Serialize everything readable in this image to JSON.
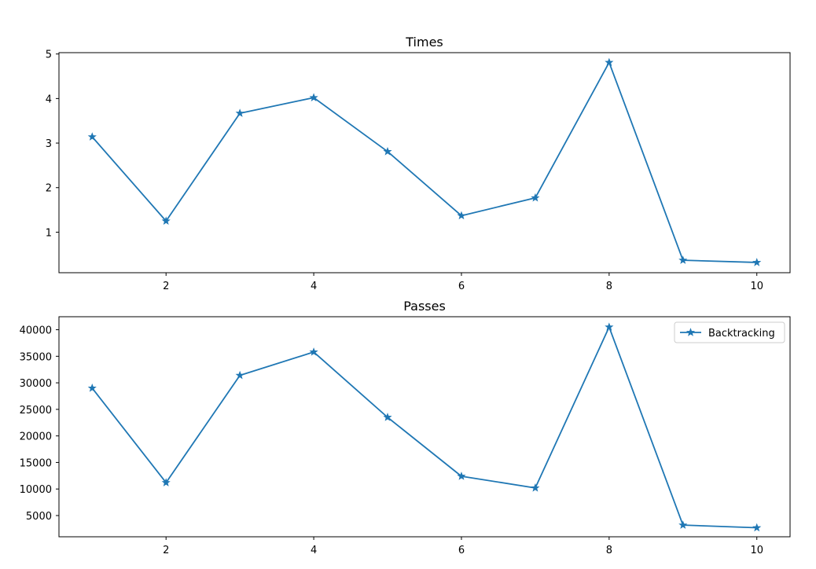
{
  "chart_data": [
    {
      "type": "line",
      "title": "Times",
      "xlabel": "",
      "ylabel": "",
      "x": [
        1,
        2,
        3,
        4,
        5,
        6,
        7,
        8,
        9,
        10
      ],
      "xlim": [
        0.55,
        10.45
      ],
      "ylim": [
        0.09,
        5.03
      ],
      "xticks": [
        2,
        4,
        6,
        8,
        10
      ],
      "yticks": [
        1,
        2,
        3,
        4,
        5
      ],
      "xtick_labels": [
        "2",
        "4",
        "6",
        "8",
        "10"
      ],
      "ytick_labels": [
        "1",
        "2",
        "3",
        "4",
        "5"
      ],
      "grid": false,
      "series": [
        {
          "marker": "star",
          "color": "#1f77b4",
          "values": [
            3.14,
            1.25,
            3.67,
            4.02,
            2.81,
            1.37,
            1.77,
            4.81,
            0.37,
            0.32
          ]
        }
      ]
    },
    {
      "type": "line",
      "title": "Passes",
      "xlabel": "",
      "ylabel": "",
      "x": [
        1,
        2,
        3,
        4,
        5,
        6,
        7,
        8,
        9,
        10
      ],
      "xlim": [
        0.55,
        10.45
      ],
      "ylim": [
        1000,
        42450
      ],
      "xticks": [
        2,
        4,
        6,
        8,
        10
      ],
      "yticks": [
        5000,
        10000,
        15000,
        20000,
        25000,
        30000,
        35000,
        40000
      ],
      "xtick_labels": [
        "2",
        "4",
        "6",
        "8",
        "10"
      ],
      "ytick_labels": [
        "5000",
        "10000",
        "15000",
        "20000",
        "25000",
        "30000",
        "35000",
        "40000"
      ],
      "grid": false,
      "legend": {
        "placement": "top-right",
        "entries": [
          "Backtracking"
        ]
      },
      "series": [
        {
          "name": "Backtracking",
          "marker": "star",
          "color": "#1f77b4",
          "values": [
            29000,
            11200,
            31400,
            35800,
            23500,
            12400,
            10200,
            40500,
            3200,
            2700
          ]
        }
      ]
    }
  ]
}
